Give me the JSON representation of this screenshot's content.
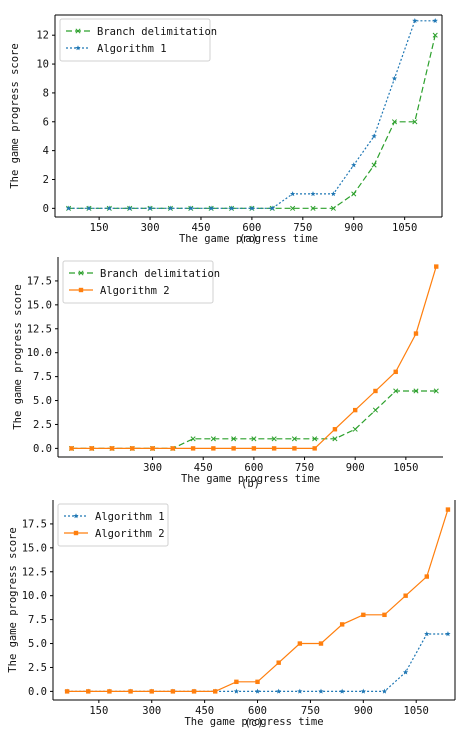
{
  "chart_data": [
    {
      "type": "line",
      "panel_label": "(a)",
      "xlabel": "The game progress time",
      "ylabel": "The game progress score",
      "x_ticks": [
        150,
        300,
        450,
        600,
        750,
        900,
        1050
      ],
      "y_ticks": [
        0,
        2,
        4,
        6,
        8,
        10,
        12
      ],
      "y_tick_labels": [
        "0",
        "2",
        "4",
        "6",
        "8",
        "10",
        "12"
      ],
      "xlim": [
        20,
        1160
      ],
      "ylim": [
        -0.6,
        13.4
      ],
      "grid": false,
      "legend_position": "upper-left",
      "x": [
        60,
        120,
        180,
        240,
        300,
        360,
        420,
        480,
        540,
        600,
        660,
        720,
        780,
        840,
        900,
        960,
        1020,
        1080,
        1140
      ],
      "series": [
        {
          "name": "Branch delimitation",
          "color": "#2ca02c",
          "dash": "6,3",
          "marker": "x",
          "values": [
            0,
            0,
            0,
            0,
            0,
            0,
            0,
            0,
            0,
            0,
            0,
            0,
            0,
            0,
            1,
            3,
            6,
            6,
            12
          ]
        },
        {
          "name": "Algorithm 1",
          "color": "#1f77b4",
          "dash": "2,2",
          "marker": "star",
          "values": [
            0,
            0,
            0,
            0,
            0,
            0,
            0,
            0,
            0,
            0,
            0,
            1,
            1,
            1,
            3,
            5,
            9,
            13,
            13
          ]
        }
      ]
    },
    {
      "type": "line",
      "panel_label": "(b)",
      "xlabel": "The game progress time",
      "ylabel": "The game progress score",
      "x_ticks": [
        300,
        450,
        600,
        750,
        900,
        1050
      ],
      "y_ticks": [
        0,
        2.5,
        5,
        7.5,
        10,
        12.5,
        15,
        17.5
      ],
      "y_tick_labels": [
        "0.0",
        "2.5",
        "5.0",
        "7.5",
        "10.0",
        "12.5",
        "15.0",
        "17.5"
      ],
      "xlim": [
        20,
        1160
      ],
      "ylim": [
        -0.9,
        20
      ],
      "grid": false,
      "legend_position": "upper-left",
      "x": [
        60,
        120,
        180,
        240,
        300,
        360,
        420,
        480,
        540,
        600,
        660,
        720,
        780,
        840,
        900,
        960,
        1020,
        1080,
        1140
      ],
      "series": [
        {
          "name": "Branch delimitation",
          "color": "#2ca02c",
          "dash": "6,3",
          "marker": "x",
          "values": [
            0,
            0,
            0,
            0,
            0,
            0,
            1,
            1,
            1,
            1,
            1,
            1,
            1,
            1,
            2,
            4,
            6,
            6,
            6
          ]
        },
        {
          "name": "Algorithm 2",
          "color": "#ff7f0e",
          "dash": "",
          "marker": "square",
          "values": [
            0,
            0,
            0,
            0,
            0,
            0,
            0,
            0,
            0,
            0,
            0,
            0,
            0,
            2,
            4,
            6,
            8,
            12,
            19
          ]
        }
      ]
    },
    {
      "type": "line",
      "panel_label": "(c)",
      "xlabel": "The game progress time",
      "ylabel": "The game progress score",
      "x_ticks": [
        150,
        300,
        450,
        600,
        750,
        900,
        1050
      ],
      "y_ticks": [
        0,
        2.5,
        5,
        7.5,
        10,
        12.5,
        15,
        17.5
      ],
      "y_tick_labels": [
        "0.0",
        "2.5",
        "5.0",
        "7.5",
        "10.0",
        "12.5",
        "15.0",
        "17.5"
      ],
      "xlim": [
        20,
        1160
      ],
      "ylim": [
        -0.9,
        20
      ],
      "grid": false,
      "legend_position": "upper-left",
      "x": [
        60,
        120,
        180,
        240,
        300,
        360,
        420,
        480,
        540,
        600,
        660,
        720,
        780,
        840,
        900,
        960,
        1020,
        1080,
        1140
      ],
      "series": [
        {
          "name": "Algorithm 1",
          "color": "#1f77b4",
          "dash": "2,2",
          "marker": "star",
          "values": [
            0,
            0,
            0,
            0,
            0,
            0,
            0,
            0,
            0,
            0,
            0,
            0,
            0,
            0,
            0,
            0,
            2,
            6,
            6
          ]
        },
        {
          "name": "Algorithm 2",
          "color": "#ff7f0e",
          "dash": "",
          "marker": "square",
          "values": [
            0,
            0,
            0,
            0,
            0,
            0,
            0,
            0,
            1,
            1,
            3,
            5,
            5,
            7,
            8,
            8,
            10,
            12,
            19
          ]
        }
      ]
    }
  ]
}
